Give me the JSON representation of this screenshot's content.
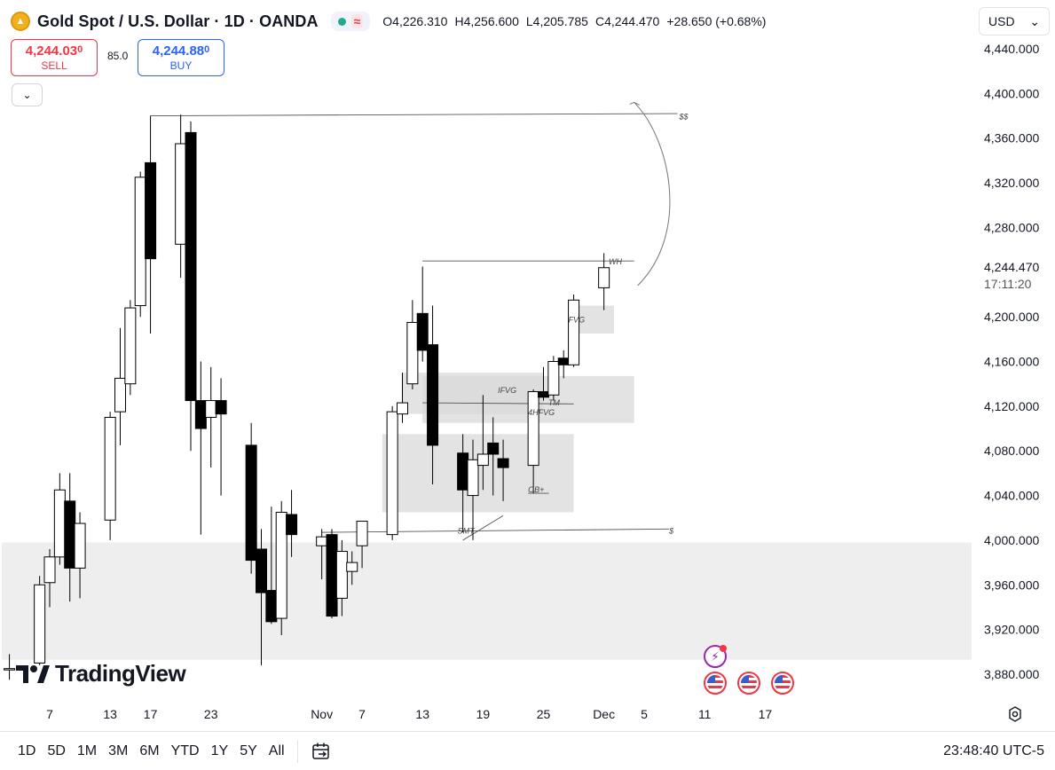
{
  "header": {
    "symbol_title": "Gold Spot / U.S. Dollar · 1D · OANDA",
    "open": "O4,226.310",
    "high": "H4,256.600",
    "low": "L4,205.785",
    "close": "C4,244.470",
    "change": "+28.650 (+0.68%)",
    "status_wave": "≈"
  },
  "trade": {
    "sell_price_main": "4,244.03",
    "sell_price_sup": "0",
    "sell_label": "SELL",
    "buy_price_main": "4,244.88",
    "buy_price_sup": "0",
    "buy_label": "BUY",
    "spread": "85.0"
  },
  "currency": {
    "value": "USD",
    "chevron": "⌄"
  },
  "collapse_chevron": "⌄",
  "logo_text": "TradingView",
  "bottom_bar": {
    "ranges": [
      "1D",
      "5D",
      "1M",
      "3M",
      "6M",
      "YTD",
      "1Y",
      "5Y",
      "All"
    ],
    "clock": "23:48:40 UTC-5"
  },
  "colors": {
    "up_candle": "#ffffff",
    "down_candle": "#000000",
    "zone": "#d9d9d9",
    "sell": "#f23645",
    "buy": "#2962ff"
  },
  "icons": [
    "gold-coin-icon",
    "market-open-dot-icon",
    "wave-icon",
    "chevron-down-icon",
    "bolt-event-icon",
    "us-flag-icon",
    "settings-icon",
    "calendar-icon"
  ],
  "chart_data": {
    "type": "candlestick",
    "ylim": [
      3870,
      4460
    ],
    "y_ticks": [
      "4,440.000",
      "4,400.000",
      "4,360.000",
      "4,320.000",
      "4,280.000",
      "4,200.000",
      "4,160.000",
      "4,120.000",
      "4,080.000",
      "4,040.000",
      "4,000.000",
      "3,960.000",
      "3,920.000",
      "3,880.000"
    ],
    "last_price": "4,244.470",
    "countdown": "17:11:20",
    "x_ticks": [
      "7",
      "13",
      "17",
      "23",
      "Nov",
      "7",
      "13",
      "19",
      "25",
      "Dec",
      "5",
      "11",
      "17"
    ],
    "x_tick_dates": [
      "2025-10-07",
      "2025-10-13",
      "2025-10-17",
      "2025-10-23",
      "2025-11-03",
      "2025-11-07",
      "2025-11-13",
      "2025-11-19",
      "2025-11-25",
      "2025-12-01",
      "2025-12-05",
      "2025-12-11",
      "2025-12-17"
    ],
    "candles": [
      {
        "date": "2025-10-03",
        "o": 3885,
        "h": 3898,
        "l": 3875,
        "c": 3885
      },
      {
        "date": "2025-10-06",
        "o": 3890,
        "h": 3968,
        "l": 3888,
        "c": 3960
      },
      {
        "date": "2025-10-07",
        "o": 3962,
        "h": 3992,
        "l": 3940,
        "c": 3985
      },
      {
        "date": "2025-10-08",
        "o": 3985,
        "h": 4060,
        "l": 3978,
        "c": 4045
      },
      {
        "date": "2025-10-09",
        "o": 4035,
        "h": 4060,
        "l": 3945,
        "c": 3975
      },
      {
        "date": "2025-10-10",
        "o": 3975,
        "h": 4025,
        "l": 3948,
        "c": 4015
      },
      {
        "date": "2025-10-13",
        "o": 4018,
        "h": 4115,
        "l": 4000,
        "c": 4110
      },
      {
        "date": "2025-10-14",
        "o": 4115,
        "h": 4190,
        "l": 4085,
        "c": 4145
      },
      {
        "date": "2025-10-15",
        "o": 4140,
        "h": 4215,
        "l": 4130,
        "c": 4208
      },
      {
        "date": "2025-10-16",
        "o": 4210,
        "h": 4330,
        "l": 4200,
        "c": 4325
      },
      {
        "date": "2025-10-17",
        "o": 4338,
        "h": 4380,
        "l": 4185,
        "c": 4252
      },
      {
        "date": "2025-10-20",
        "o": 4265,
        "h": 4381,
        "l": 4235,
        "c": 4355
      },
      {
        "date": "2025-10-21",
        "o": 4365,
        "h": 4375,
        "l": 4080,
        "c": 4125
      },
      {
        "date": "2025-10-22",
        "o": 4125,
        "h": 4160,
        "l": 4005,
        "c": 4100
      },
      {
        "date": "2025-10-23",
        "o": 4110,
        "h": 4155,
        "l": 4065,
        "c": 4125
      },
      {
        "date": "2025-10-24",
        "o": 4125,
        "h": 4145,
        "l": 4040,
        "c": 4113
      },
      {
        "date": "2025-10-27",
        "o": 4085,
        "h": 4105,
        "l": 3970,
        "c": 3982
      },
      {
        "date": "2025-10-28",
        "o": 3992,
        "h": 4010,
        "l": 3888,
        "c": 3953
      },
      {
        "date": "2025-10-29",
        "o": 3955,
        "h": 4030,
        "l": 3925,
        "c": 3927
      },
      {
        "date": "2025-10-30",
        "o": 3930,
        "h": 4035,
        "l": 3915,
        "c": 4025
      },
      {
        "date": "2025-10-31",
        "o": 4023,
        "h": 4045,
        "l": 3985,
        "c": 4005
      },
      {
        "date": "2025-11-03",
        "o": 3995,
        "h": 4010,
        "l": 3965,
        "c": 4003
      },
      {
        "date": "2025-11-04",
        "o": 4005,
        "h": 4010,
        "l": 3930,
        "c": 3932
      },
      {
        "date": "2025-11-05",
        "o": 3948,
        "h": 4000,
        "l": 3932,
        "c": 3990
      },
      {
        "date": "2025-11-06",
        "o": 3972,
        "h": 3990,
        "l": 3960,
        "c": 3980
      },
      {
        "date": "2025-11-07",
        "o": 3995,
        "h": 4015,
        "l": 3975,
        "c": 4017
      },
      {
        "date": "2025-11-10",
        "o": 4005,
        "h": 4120,
        "l": 4000,
        "c": 4115
      },
      {
        "date": "2025-11-11",
        "o": 4113,
        "h": 4150,
        "l": 4105,
        "c": 4123
      },
      {
        "date": "2025-11-12",
        "o": 4140,
        "h": 4215,
        "l": 4135,
        "c": 4195
      },
      {
        "date": "2025-11-13",
        "o": 4203,
        "h": 4245,
        "l": 4160,
        "c": 4170
      },
      {
        "date": "2025-11-14",
        "o": 4175,
        "h": 4210,
        "l": 4050,
        "c": 4085
      },
      {
        "date": "2025-11-17",
        "o": 4078,
        "h": 4095,
        "l": 4007,
        "c": 4045
      },
      {
        "date": "2025-11-18",
        "o": 4040,
        "h": 4090,
        "l": 4000,
        "c": 4072
      },
      {
        "date": "2025-11-19",
        "o": 4067,
        "h": 4130,
        "l": 4045,
        "c": 4077
      },
      {
        "date": "2025-11-20",
        "o": 4087,
        "h": 4110,
        "l": 4040,
        "c": 4077
      },
      {
        "date": "2025-11-21",
        "o": 4073,
        "h": 4090,
        "l": 4035,
        "c": 4065
      },
      {
        "date": "2025-11-24",
        "o": 4067,
        "h": 4135,
        "l": 4042,
        "c": 4133
      },
      {
        "date": "2025-11-25",
        "o": 4133,
        "h": 4155,
        "l": 4125,
        "c": 4128
      },
      {
        "date": "2025-11-26",
        "o": 4130,
        "h": 4165,
        "l": 4125,
        "c": 4160
      },
      {
        "date": "2025-11-27",
        "o": 4163,
        "h": 4170,
        "l": 4145,
        "c": 4157
      },
      {
        "date": "2025-11-28",
        "o": 4157,
        "h": 4220,
        "l": 4155,
        "c": 4215
      },
      {
        "date": "2025-12-01",
        "o": 4226,
        "h": 4257,
        "l": 4206,
        "c": 4244
      }
    ],
    "zones": [
      {
        "x0": "2025-11-11",
        "x1": "2025-11-25",
        "y0": 4113,
        "y1": 4150
      },
      {
        "x0": "2025-11-13",
        "x1": "2025-12-04",
        "y0": 4105,
        "y1": 4147
      },
      {
        "x0": "2025-11-09",
        "x1": "2025-11-28",
        "y0": 4025,
        "y1": 4095
      },
      {
        "x0": "2025-11-28",
        "x1": "2025-12-02",
        "y0": 4185,
        "y1": 4210
      },
      {
        "x0": "2025-09-29",
        "x1": "2026-01-01",
        "y0": 3893,
        "y1": 3998
      }
    ],
    "annotations": [
      {
        "text": "$$",
        "x": "2025-12-09",
        "y": 4380
      },
      {
        "text": "WH",
        "x": "2025-12-02",
        "y": 4250
      },
      {
        "text": "FVG",
        "x": "2025-11-28",
        "y": 4198
      },
      {
        "text": "IFVG",
        "x": "2025-11-21",
        "y": 4135
      },
      {
        "text": "4HFVG",
        "x": "2025-11-24",
        "y": 4115
      },
      {
        "text": "TM",
        "x": "2025-11-26",
        "y": 4124
      },
      {
        "text": "OB+",
        "x": "2025-11-24",
        "y": 4046
      },
      {
        "text": "SMT",
        "x": "2025-11-17",
        "y": 4009
      },
      {
        "text": "$",
        "x": "2025-12-08",
        "y": 4009
      }
    ]
  }
}
